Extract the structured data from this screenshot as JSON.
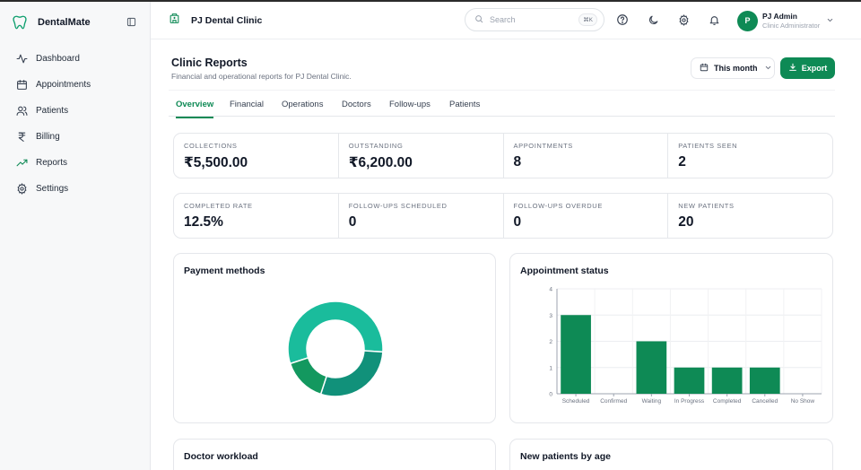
{
  "brand": {
    "name": "DentalMate"
  },
  "nav": {
    "items": [
      {
        "label": "Dashboard",
        "icon": "activity-icon",
        "active": false
      },
      {
        "label": "Appointments",
        "icon": "calendar-icon",
        "active": false
      },
      {
        "label": "Patients",
        "icon": "users-icon",
        "active": false
      },
      {
        "label": "Billing",
        "icon": "rupee-icon",
        "active": false
      },
      {
        "label": "Reports",
        "icon": "trending-up-icon",
        "active": true
      },
      {
        "label": "Settings",
        "icon": "gear-icon",
        "active": false
      }
    ]
  },
  "header": {
    "clinic_name": "PJ Dental Clinic",
    "search_placeholder": "Search",
    "search_shortcut": "⌘K",
    "user_initial": "P",
    "user_name": "PJ Admin",
    "user_role": "Clinic Administrator"
  },
  "page": {
    "title": "Clinic Reports",
    "subtitle": "Financial and operational reports for PJ Dental Clinic.",
    "range_label": "This month",
    "export_label": "Export"
  },
  "tabs": [
    {
      "label": "Overview",
      "active": true
    },
    {
      "label": "Financial",
      "active": false
    },
    {
      "label": "Operations",
      "active": false
    },
    {
      "label": "Doctors",
      "active": false
    },
    {
      "label": "Follow-ups",
      "active": false
    },
    {
      "label": "Patients",
      "active": false
    }
  ],
  "stats_row1": [
    {
      "label": "COLLECTIONS",
      "value": "₹5,500.00"
    },
    {
      "label": "OUTSTANDING",
      "value": "₹6,200.00"
    },
    {
      "label": "APPOINTMENTS",
      "value": "8"
    },
    {
      "label": "PATIENTS SEEN",
      "value": "2"
    }
  ],
  "stats_row2": [
    {
      "label": "COMPLETED RATE",
      "value": "12.5%"
    },
    {
      "label": "FOLLOW-UPS SCHEDULED",
      "value": "0"
    },
    {
      "label": "FOLLOW-UPS OVERDUE",
      "value": "0"
    },
    {
      "label": "NEW PATIENTS",
      "value": "20"
    }
  ],
  "panels": {
    "payment_methods": "Payment methods",
    "appointment_status": "Appointment status",
    "doctor_workload": "Doctor workload",
    "new_patients_by_age": "New patients by age"
  },
  "colors": {
    "accent": "#0e8a55",
    "donut": [
      "#1abc9c",
      "#11917a",
      "#13985f"
    ]
  },
  "chart_data": [
    {
      "type": "pie",
      "title": "Payment methods",
      "slices": [
        {
          "value": 56
        },
        {
          "value": 29
        },
        {
          "value": 15
        }
      ]
    },
    {
      "type": "bar",
      "title": "Appointment status",
      "categories": [
        "Scheduled",
        "Confirmed",
        "Waiting",
        "In Progress",
        "Completed",
        "Cancelled",
        "No Show"
      ],
      "values": [
        3,
        0,
        2,
        1,
        1,
        1,
        0
      ],
      "ylim": [
        0,
        4
      ],
      "yticks": [
        0,
        1,
        2,
        3,
        4
      ],
      "grid": true
    }
  ]
}
